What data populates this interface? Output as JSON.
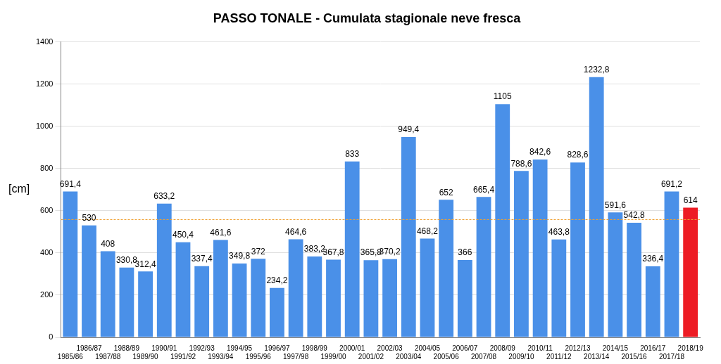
{
  "chart_data": {
    "type": "bar",
    "title": "PASSO TONALE - Cumulata stagionale neve fresca",
    "ylabel": "[cm]",
    "categories": [
      "1985/86",
      "1986/87",
      "1987/88",
      "1988/89",
      "1989/90",
      "1990/91",
      "1991/92",
      "1992/93",
      "1993/94",
      "1994/95",
      "1995/96",
      "1996/97",
      "1997/98",
      "1998/99",
      "1999/00",
      "2000/01",
      "2001/02",
      "2002/03",
      "2003/04",
      "2004/05",
      "2005/06",
      "2006/07",
      "2007/08",
      "2008/09",
      "2009/10",
      "2010/11",
      "2011/12",
      "2012/13",
      "2013/14",
      "2014/15",
      "2015/16",
      "2016/17",
      "2017/18",
      "2018/19"
    ],
    "values": [
      691.4,
      530,
      408,
      330.8,
      312.4,
      633.2,
      450.4,
      337.4,
      461.6,
      349.8,
      372,
      234.2,
      464.6,
      383.2,
      367.8,
      833,
      365.8,
      370.2,
      949.4,
      468.2,
      652,
      366,
      665.4,
      1105,
      788.6,
      842.6,
      463.8,
      828.6,
      1232.8,
      591.6,
      542.8,
      336.4,
      691.2,
      614
    ],
    "value_labels": [
      "691,4",
      "530",
      "408",
      "330,8",
      "312,4",
      "633,2",
      "450,4",
      "337,4",
      "461,6",
      "349,8",
      "372",
      "234,2",
      "464,6",
      "383,2",
      "367,8",
      "833",
      "365,8",
      "370,2",
      "949,4",
      "468,2",
      "652",
      "366",
      "665,4",
      "1105",
      "788,6",
      "842,6",
      "463,8",
      "828,6",
      "1232,8",
      "591,6",
      "542,8",
      "336,4",
      "691,2",
      "614"
    ],
    "colors": [
      "#4a90e8",
      "#4a90e8",
      "#4a90e8",
      "#4a90e8",
      "#4a90e8",
      "#4a90e8",
      "#4a90e8",
      "#4a90e8",
      "#4a90e8",
      "#4a90e8",
      "#4a90e8",
      "#4a90e8",
      "#4a90e8",
      "#4a90e8",
      "#4a90e8",
      "#4a90e8",
      "#4a90e8",
      "#4a90e8",
      "#4a90e8",
      "#4a90e8",
      "#4a90e8",
      "#4a90e8",
      "#4a90e8",
      "#4a90e8",
      "#4a90e8",
      "#4a90e8",
      "#4a90e8",
      "#4a90e8",
      "#4a90e8",
      "#4a90e8",
      "#4a90e8",
      "#4a90e8",
      "#4a90e8",
      "#ed1c24"
    ],
    "average": 558,
    "average_color": "#f0a030",
    "ylim": [
      0,
      1400
    ],
    "yticks": [
      0,
      200,
      400,
      600,
      800,
      1000,
      1200,
      1400
    ],
    "grid": true,
    "data_labels": true
  }
}
